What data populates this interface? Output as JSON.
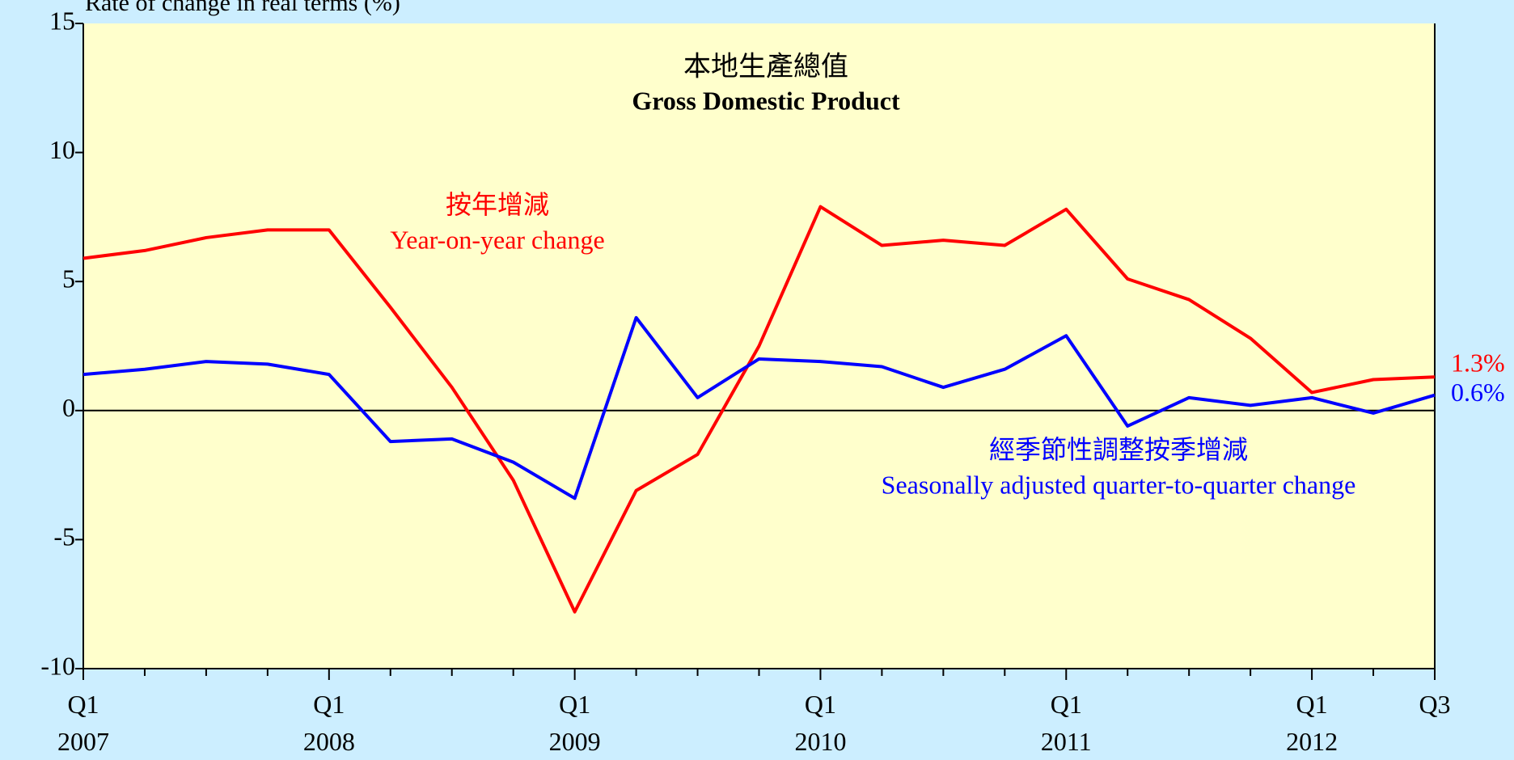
{
  "chart_data": {
    "type": "line",
    "title": "本地生產總值",
    "subtitle": "Gross Domestic Product",
    "y_axis_label": "Rate of change in real terms (%)",
    "categories": [
      "Q1 2007",
      null,
      null,
      null,
      "Q1 2008",
      null,
      null,
      null,
      "Q1 2009",
      null,
      null,
      null,
      "Q1 2010",
      null,
      null,
      null,
      "Q1 2011",
      null,
      null,
      null,
      "Q1 2012",
      null,
      "Q3"
    ],
    "series": [
      {
        "name": "Year-on-year change",
        "name_zh": "按年增減",
        "color": "#ff0000",
        "values": [
          5.9,
          6.2,
          6.7,
          7.0,
          7.0,
          4.0,
          0.9,
          -2.7,
          -7.8,
          -3.1,
          -1.7,
          2.5,
          7.9,
          6.4,
          6.6,
          6.4,
          7.8,
          5.1,
          4.3,
          2.8,
          0.7,
          1.2,
          1.3
        ],
        "value_labels": [
          null,
          null,
          null,
          null,
          null,
          null,
          null,
          null,
          null,
          null,
          null,
          null,
          null,
          null,
          null,
          null,
          null,
          null,
          null,
          null,
          null,
          null,
          "1.3%"
        ]
      },
      {
        "name": "Seasonally adjusted quarter-to-quarter change",
        "name_zh": "經季節性調整按季增減",
        "color": "#0000ff",
        "values": [
          1.4,
          1.6,
          1.9,
          1.8,
          1.4,
          -1.2,
          -1.1,
          -2.0,
          -3.4,
          3.6,
          0.5,
          2.0,
          1.9,
          1.7,
          0.9,
          1.6,
          2.9,
          -0.6,
          0.5,
          0.2,
          0.5,
          -0.1,
          0.6
        ],
        "value_labels": [
          null,
          null,
          null,
          null,
          null,
          null,
          null,
          null,
          null,
          null,
          null,
          null,
          null,
          null,
          null,
          null,
          null,
          null,
          null,
          null,
          null,
          null,
          "0.6%"
        ]
      }
    ],
    "ylim": [
      -10,
      15
    ],
    "yticks": [
      -10,
      -5,
      0,
      5,
      10,
      15
    ]
  }
}
